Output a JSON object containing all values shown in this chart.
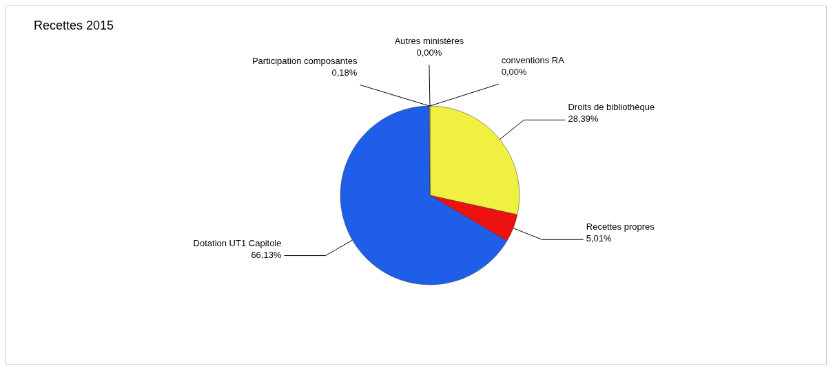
{
  "chart_data": {
    "type": "pie",
    "title": "Recettes 2015",
    "categories": [
      "Droits de bibliothèque",
      "Recettes propres",
      "Dotation UT1 Capitole",
      "Participation composantes",
      "Autres ministères",
      "conventions RA"
    ],
    "values": [
      28.39,
      5.01,
      66.13,
      0.18,
      0,
      0
    ],
    "value_labels": [
      "28,39%",
      "5,01%",
      "66,13%",
      "0,18%",
      "0,00%",
      "0,00%"
    ],
    "colors": [
      "#f0f040",
      "#ee1111",
      "#1f5ee8",
      "#8080c0",
      "#808080",
      "#a0a0a0"
    ]
  }
}
